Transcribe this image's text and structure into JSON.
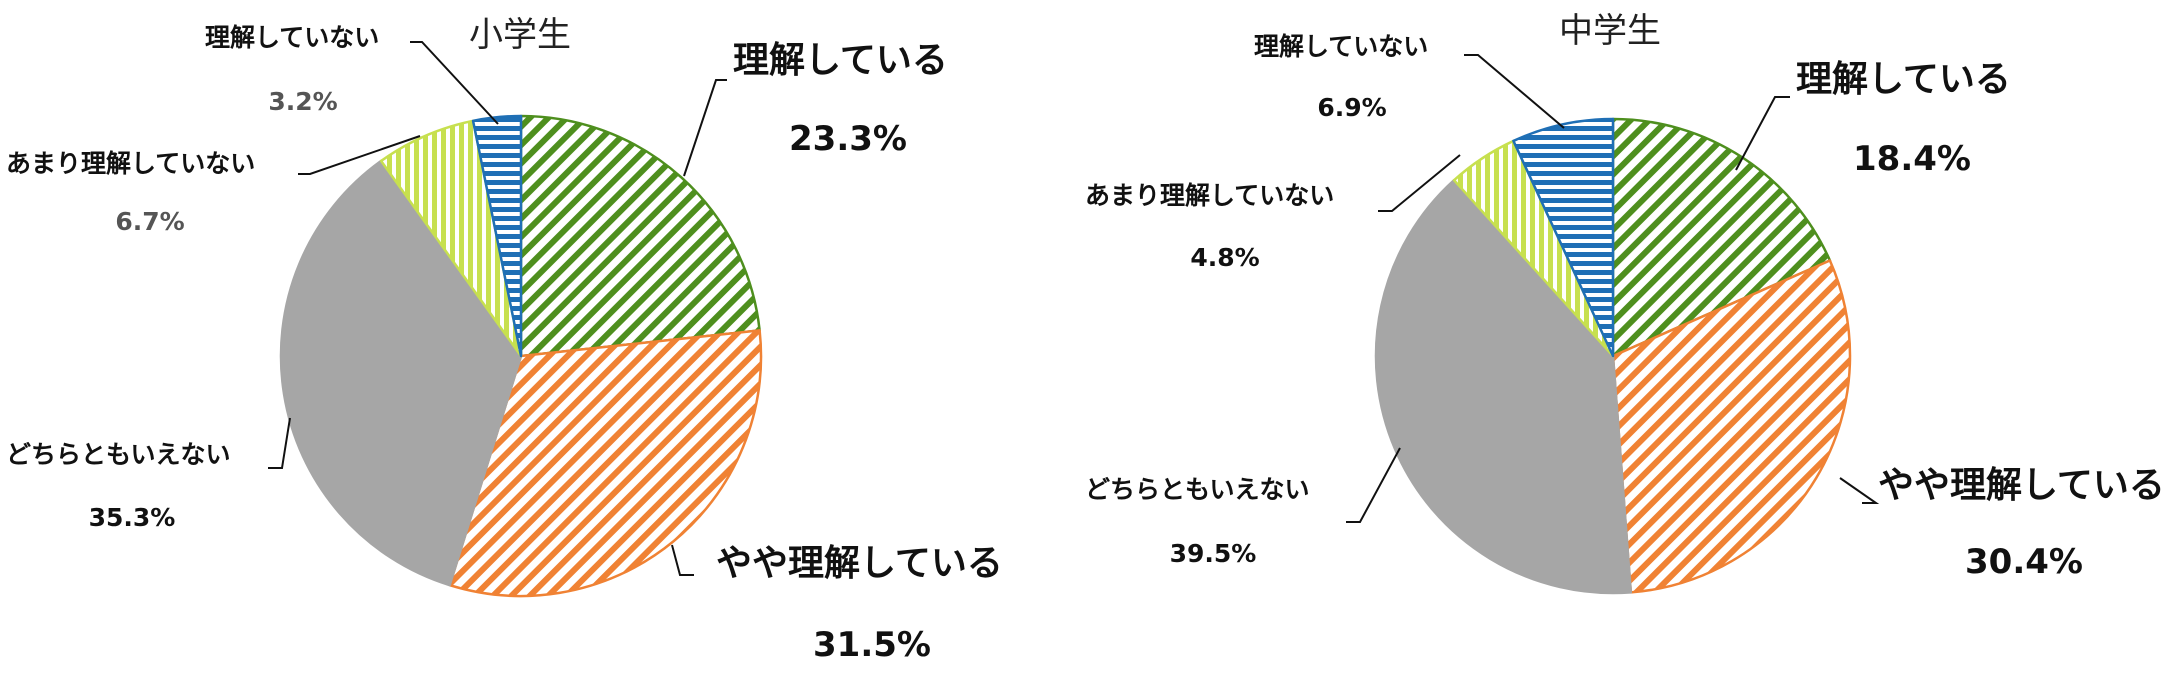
{
  "chart_data": [
    {
      "type": "pie",
      "title": "小学生",
      "categories": [
        "理解している",
        "やや理解している",
        "どちらともいえない",
        "あまり理解していない",
        "理解していない"
      ],
      "values": [
        23.3,
        31.5,
        35.3,
        6.7,
        3.2
      ],
      "value_labels": [
        "23.3%",
        "31.5%",
        "35.3%",
        "6.7%",
        "3.2%"
      ],
      "start_angle": "12 o'clock",
      "direction": "clockwise",
      "slice_colors": [
        "#4e8f1e",
        "#f08234",
        "#a6a6a6",
        "#c7e04f",
        "#1f6fb5"
      ]
    },
    {
      "type": "pie",
      "title": "中学生",
      "categories": [
        "理解している",
        "やや理解している",
        "どちらともいえない",
        "あまり理解していない",
        "理解していない"
      ],
      "values": [
        18.4,
        30.4,
        39.5,
        4.8,
        6.9
      ],
      "value_labels": [
        "18.4%",
        "30.4%",
        "39.5%",
        "4.8%",
        "6.9%"
      ],
      "start_angle": "12 o'clock",
      "direction": "clockwise",
      "slice_colors": [
        "#4e8f1e",
        "#f08234",
        "#a6a6a6",
        "#c7e04f",
        "#1f6fb5"
      ]
    }
  ]
}
